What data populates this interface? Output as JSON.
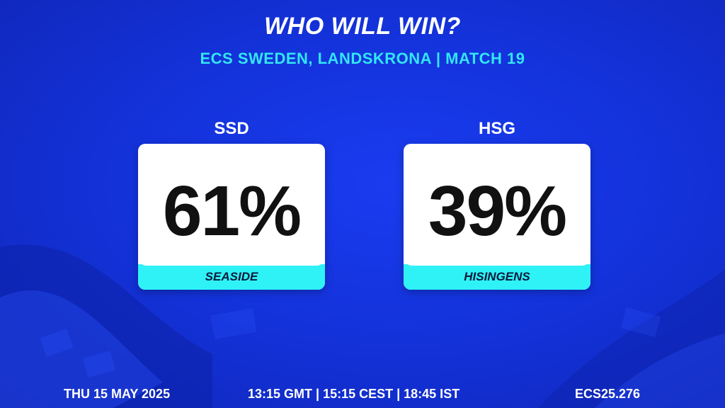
{
  "header": {
    "title": "WHO WILL WIN?",
    "subtitle": "ECS SWEDEN, LANDSKRONA | MATCH 19"
  },
  "teams": [
    {
      "code": "SSD",
      "percentage": "61%",
      "name": "SEASIDE"
    },
    {
      "code": "HSG",
      "percentage": "39%",
      "name": "HISINGENS"
    }
  ],
  "footer": {
    "date": "THU 15 MAY 2025",
    "times": "13:15 GMT | 15:15 CEST | 18:45 IST",
    "match_code": "ECS25.276"
  },
  "colors": {
    "background": "#1433dc",
    "accent_cyan": "#33e6f5",
    "card": "#ffffff",
    "name_bar": "#2ff2f7"
  }
}
